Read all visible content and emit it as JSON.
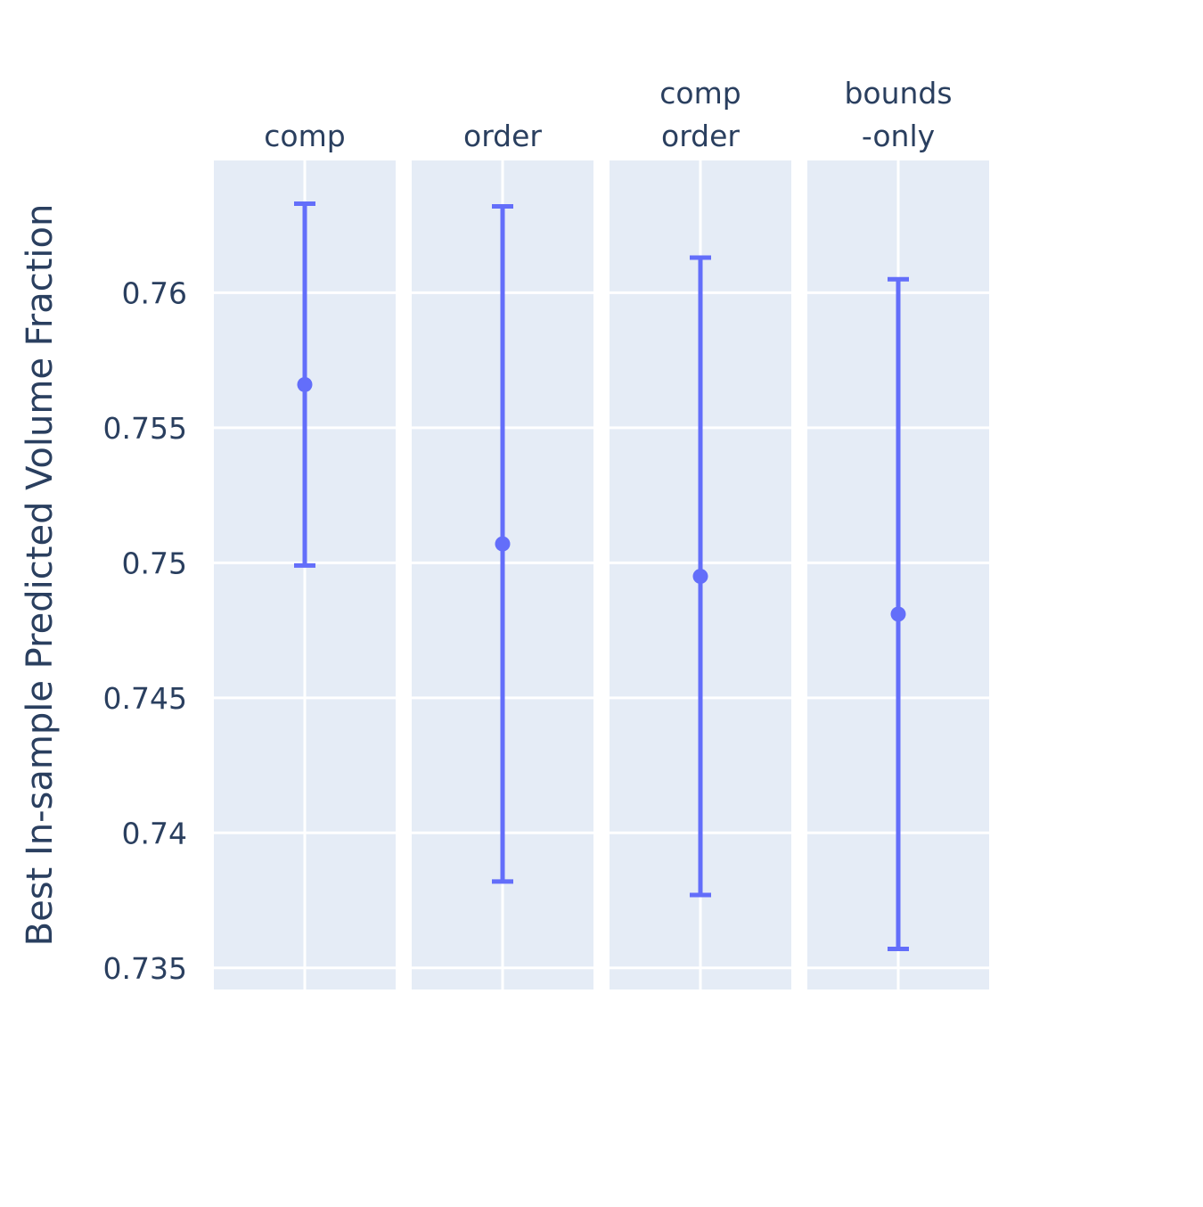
{
  "chart_data": {
    "type": "scatter",
    "ylabel": "Best In-sample Predicted Volume Fraction",
    "ylim": [
      0.7342,
      0.7649
    ],
    "yticks": [
      0.735,
      0.74,
      0.745,
      0.75,
      0.755,
      0.76
    ],
    "ytick_labels": [
      "0.735",
      "0.74",
      "0.745",
      "0.75",
      "0.755",
      "0.76"
    ],
    "grid": true,
    "marker_color": "#636efa",
    "panel_background": "#e5ecf6",
    "text_color": "#2a3f5f",
    "panels": [
      {
        "title_lines": [
          "comp"
        ],
        "value": 0.7566,
        "error_low": 0.7499,
        "error_high": 0.7633
      },
      {
        "title_lines": [
          "order"
        ],
        "value": 0.7507,
        "error_low": 0.7382,
        "error_high": 0.7632
      },
      {
        "title_lines": [
          "comp",
          "order"
        ],
        "value": 0.7495,
        "error_low": 0.7377,
        "error_high": 0.7613
      },
      {
        "title_lines": [
          "bounds",
          "-only"
        ],
        "value": 0.7481,
        "error_low": 0.7357,
        "error_high": 0.7605
      }
    ]
  }
}
